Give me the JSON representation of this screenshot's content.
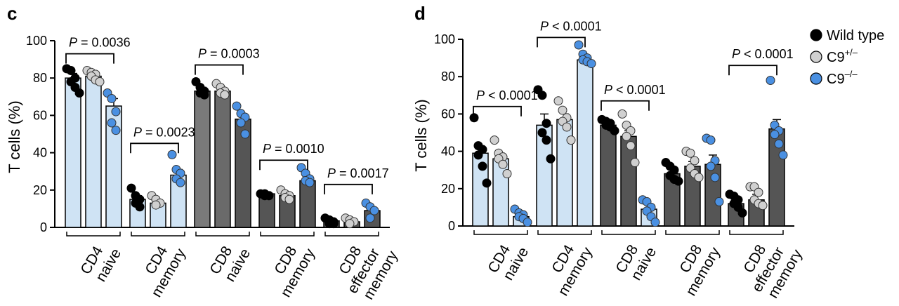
{
  "legend": {
    "position": "top-right",
    "items": [
      {
        "name": "Wild type",
        "sup": "",
        "color": "#000000"
      },
      {
        "name": "C9",
        "sup": "+/–",
        "color": "#d0d0d0"
      },
      {
        "name": "C9",
        "sup": "–/–",
        "color": "#4a90e2"
      }
    ]
  },
  "chart_data": [
    {
      "type": "bar",
      "panel_label": "c",
      "ylabel": "T cells (%)",
      "ylim": [
        0,
        100
      ],
      "yticks": [
        0,
        20,
        40,
        60,
        80,
        100
      ],
      "categories": [
        {
          "lines": [
            "CD4",
            "naive"
          ]
        },
        {
          "lines": [
            "CD4",
            "memory"
          ]
        },
        {
          "lines": [
            "CD8",
            "naive"
          ]
        },
        {
          "lines": [
            "CD8",
            "memory"
          ]
        },
        {
          "lines": [
            "CD8",
            "effector",
            "memory"
          ]
        }
      ],
      "series": [
        {
          "name": "Wild type",
          "values": [
            80,
            15,
            73,
            18,
            3.5
          ],
          "errors": [
            2.5,
            2,
            2,
            1,
            0.5
          ],
          "points": [
            [
              85,
              84,
              80,
              78,
              75,
              72
            ],
            [
              21,
              17,
              15,
              13,
              11
            ],
            [
              78,
              75,
              73,
              72,
              71
            ],
            [
              18,
              18,
              17,
              17
            ],
            [
              5,
              4,
              3,
              2,
              2
            ]
          ]
        },
        {
          "name": "C9 +/–",
          "values": [
            81,
            13,
            73,
            17,
            3
          ],
          "errors": [
            1.5,
            1.5,
            1.5,
            1,
            0.5
          ],
          "points": [
            [
              84,
              83,
              82,
              81,
              79,
              78
            ],
            [
              17,
              15,
              13,
              12
            ],
            [
              77,
              75,
              73,
              72,
              71
            ],
            [
              20,
              18,
              17,
              16,
              15
            ],
            [
              5,
              4,
              3,
              2
            ]
          ]
        },
        {
          "name": "C9 –/–",
          "values": [
            65,
            28,
            58,
            25,
            9
          ],
          "errors": [
            4,
            3,
            3,
            2,
            1.5
          ],
          "points": [
            [
              72,
              69,
              62,
              56,
              52
            ],
            [
              39,
              31,
              29,
              26,
              24
            ],
            [
              65,
              61,
              59,
              56,
              50
            ],
            [
              32,
              29,
              26,
              25,
              24
            ],
            [
              13,
              11,
              9,
              5
            ]
          ]
        }
      ],
      "annotations": [
        {
          "text": "P = 0.0036",
          "category": 0,
          "bar_from": 0,
          "bar_to": 2,
          "y": 93
        },
        {
          "text": "P = 0.0023",
          "category": 1,
          "bar_from": 0,
          "bar_to": 2,
          "y": 45
        },
        {
          "text": "P = 0.0003",
          "category": 2,
          "bar_from": 0,
          "bar_to": 2,
          "y": 87
        },
        {
          "text": "P = 0.0010",
          "category": 3,
          "bar_from": 0,
          "bar_to": 2,
          "y": 36
        },
        {
          "text": "P = 0.0017",
          "category": 4,
          "bar_from": 0,
          "bar_to": 2,
          "y": 23
        }
      ]
    },
    {
      "type": "bar",
      "panel_label": "d",
      "ylabel": "T cells (%)",
      "ylim": [
        0,
        100
      ],
      "yticks": [
        0,
        20,
        40,
        60,
        80,
        100
      ],
      "categories": [
        {
          "lines": [
            "CD4",
            "naive"
          ]
        },
        {
          "lines": [
            "CD4",
            "memory"
          ]
        },
        {
          "lines": [
            "CD8",
            "naive"
          ]
        },
        {
          "lines": [
            "CD8",
            "memory"
          ]
        },
        {
          "lines": [
            "CD8",
            "effector",
            "memory"
          ]
        }
      ],
      "series": [
        {
          "name": "Wild type",
          "values": [
            39,
            54,
            54,
            28,
            12
          ],
          "errors": [
            4,
            6,
            1.5,
            2,
            2
          ],
          "points": [
            [
              58,
              43,
              41,
              38,
              32,
              23
            ],
            [
              73,
              70,
              55,
              50,
              46,
              36
            ],
            [
              57,
              56,
              55,
              54,
              53,
              51
            ],
            [
              34,
              32,
              30,
              27,
              25,
              24
            ],
            [
              17,
              16,
              14,
              12,
              10,
              7
            ]
          ]
        },
        {
          "name": "C9 +/–",
          "values": [
            36,
            57,
            48,
            32,
            14
          ],
          "errors": [
            3,
            3,
            3,
            2.5,
            3
          ],
          "points": [
            [
              46,
              39,
              37,
              36,
              33,
              28
            ],
            [
              67,
              62,
              58,
              56,
              53,
              46
            ],
            [
              60,
              54,
              51,
              48,
              43,
              34
            ],
            [
              40,
              39,
              35,
              31,
              28,
              26
            ],
            [
              21,
              21,
              18,
              14,
              12,
              11
            ]
          ]
        },
        {
          "name": "C9 –/–",
          "values": [
            5,
            89,
            9,
            33,
            52
          ],
          "errors": [
            1.5,
            2,
            2,
            5,
            5
          ],
          "points": [
            [
              9,
              7,
              6,
              5,
              4,
              2
            ],
            [
              97,
              92,
              90,
              89,
              88,
              87
            ],
            [
              14,
              13,
              10,
              8,
              5,
              2
            ],
            [
              47,
              46,
              35,
              32,
              26,
              13
            ],
            [
              78,
              54,
              51,
              49,
              44,
              38
            ]
          ]
        }
      ],
      "annotations": [
        {
          "text": "P < 0.0001",
          "category": 0,
          "bar_from": 0,
          "bar_to": 2,
          "y": 64
        },
        {
          "text": "P < 0.0001",
          "category": 1,
          "bar_from": 0,
          "bar_to": 2,
          "y": 101
        },
        {
          "text": "P < 0.0001",
          "category": 2,
          "bar_from": 0,
          "bar_to": 2,
          "y": 67
        },
        {
          "text": "P < 0.0001",
          "category": 4,
          "bar_from": 0,
          "bar_to": 2,
          "y": 86
        }
      ]
    }
  ]
}
